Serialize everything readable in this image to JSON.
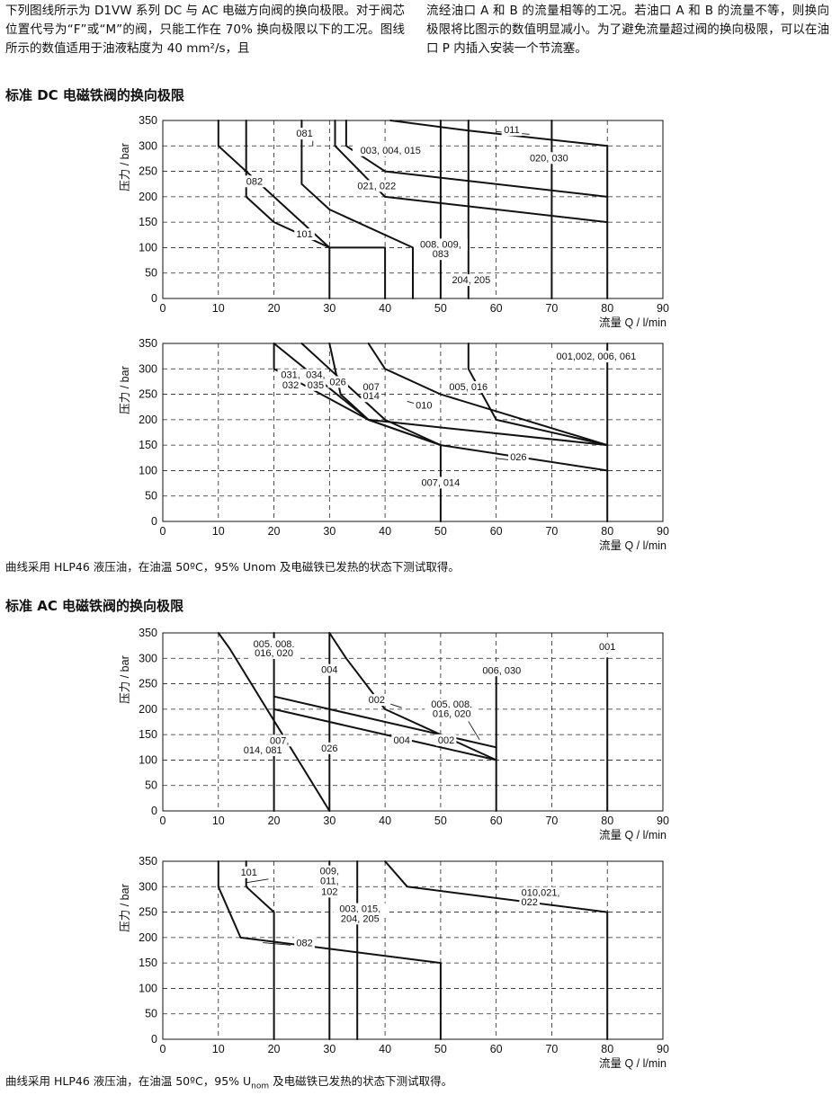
{
  "intro": {
    "left_paragraph": "下列图线所示为 D1VW 系列 DC 与 AC 电磁方向阀的换向极限。对于阀芯位置代号为“F”或“M”的阀，只能工作在 70% 换向极限以下的工况。图线所示的数值适用于油液粘度为 40 mm²/s，且",
    "right_paragraph": "流经油口 A 和 B 的流量相等的工况。若油口 A 和 B 的流量不等，则换向极限将比图示的数值明显减小。为了避免流量超过阀的换向极限，可以在油口 P 内插入安装一个节流塞。"
  },
  "sections": {
    "dc_title": "标准 DC 电磁铁阀的换向极限",
    "dc_note": "曲线采用 HLP46 液压油，在油温 50ºC，95% Unom 及电磁铁已发热的状态下测试取得。",
    "ac_title": "标准 AC 电磁铁阀的换向极限",
    "ac_note_pre": "曲线采用 HLP46 液压油，在油温 50ºC，95% U",
    "ac_note_sub": "nom",
    "ac_note_post": " 及电磁铁已发热的状态下测试取得。"
  },
  "chart_data": [
    {
      "id": "dc1",
      "type": "line",
      "ylabel": "压力 / bar",
      "xlabel": "流量 Q / l/min",
      "xlim": [
        0,
        90
      ],
      "ylim": [
        0,
        350
      ],
      "xticks": [
        0,
        10,
        20,
        30,
        40,
        50,
        60,
        70,
        80,
        90
      ],
      "yticks": [
        0,
        50,
        100,
        150,
        200,
        250,
        300,
        350
      ],
      "series": [
        {
          "name": "011",
          "points": [
            [
              41,
              350
            ],
            [
              55,
              330
            ],
            [
              80,
              300
            ],
            [
              80,
              0
            ]
          ]
        },
        {
          "name": "020, 030",
          "points": [
            [
              70,
              350
            ],
            [
              70,
              0
            ]
          ]
        },
        {
          "name": "204, 205",
          "points": [
            [
              55,
              350
            ],
            [
              55,
              0
            ]
          ]
        },
        {
          "name": "003, 004, 015",
          "points": [
            [
              33,
              350
            ],
            [
              33,
              300
            ],
            [
              40,
              250
            ],
            [
              80,
              200
            ]
          ]
        },
        {
          "name": "021, 022",
          "points": [
            [
              31,
              350
            ],
            [
              31,
              300
            ],
            [
              40,
              200
            ],
            [
              80,
              150
            ]
          ]
        },
        {
          "name": "008, 009, 083",
          "points": [
            [
              25,
              350
            ],
            [
              25,
              225
            ],
            [
              30,
              175
            ],
            [
              45,
              100
            ],
            [
              45,
              0
            ]
          ]
        },
        {
          "name": "082",
          "points": [
            [
              15,
              350
            ],
            [
              15,
              200
            ],
            [
              20,
              150
            ],
            [
              30,
              100
            ],
            [
              40,
              100
            ],
            [
              40,
              0
            ]
          ]
        },
        {
          "name": "101",
          "points": [
            [
              10,
              350
            ],
            [
              10,
              300
            ],
            [
              20,
              200
            ],
            [
              30,
              100
            ],
            [
              30,
              0
            ]
          ]
        },
        {
          "name": "081",
          "points": [
            [
              50,
              350
            ],
            [
              50,
              0
            ]
          ]
        }
      ],
      "labels": [
        "081",
        "011",
        "003, 004, 015",
        "020, 030",
        "082",
        "021, 022",
        "101",
        "008, 009,",
        "083",
        "204, 205"
      ]
    },
    {
      "id": "dc2",
      "type": "line",
      "ylabel": "压力 / bar",
      "xlabel": "流量 Q / l/min",
      "xlim": [
        0,
        90
      ],
      "ylim": [
        0,
        350
      ],
      "xticks": [
        0,
        10,
        20,
        30,
        40,
        50,
        60,
        70,
        80,
        90
      ],
      "yticks": [
        0,
        50,
        100,
        150,
        200,
        250,
        300,
        350
      ],
      "series": [
        {
          "name": "001,002, 006, 061",
          "points": [
            [
              80,
              350
            ],
            [
              80,
              0
            ]
          ]
        },
        {
          "name": "005, 016",
          "points": [
            [
              55,
              350
            ],
            [
              55,
              300
            ],
            [
              60,
              200
            ],
            [
              80,
              150
            ]
          ]
        },
        {
          "name": "010",
          "points": [
            [
              37,
              350
            ],
            [
              40,
              300
            ],
            [
              50,
              250
            ],
            [
              80,
              150
            ]
          ]
        },
        {
          "name": "007, 014",
          "points": [
            [
              30,
              350
            ],
            [
              32,
              250
            ],
            [
              37,
              200
            ],
            [
              50,
              150
            ],
            [
              50,
              0
            ]
          ]
        },
        {
          "name": "026",
          "points": [
            [
              25,
              350
            ],
            [
              30,
              300
            ],
            [
              40,
              200
            ],
            [
              50,
              150
            ],
            [
              80,
              100
            ]
          ]
        },
        {
          "name": "031, 032",
          "points": [
            [
              20,
              350
            ],
            [
              20,
              300
            ],
            [
              37,
              200
            ],
            [
              80,
              150
            ]
          ]
        },
        {
          "name": "034, 035",
          "points": [
            [
              20,
              350
            ],
            [
              37,
              200
            ],
            [
              50,
              150
            ]
          ]
        }
      ],
      "labels": [
        "001,002, 006, 061",
        "031,",
        "032",
        "034,",
        "035",
        "026",
        "007",
        "014",
        "005, 016",
        "010",
        "026",
        "007, 014"
      ]
    },
    {
      "id": "ac1",
      "type": "line",
      "ylabel": "压力 / bar",
      "xlabel": "流量 Q / l/min",
      "xlim": [
        0,
        90
      ],
      "ylim": [
        0,
        350
      ],
      "xticks": [
        0,
        10,
        20,
        30,
        40,
        50,
        60,
        70,
        80,
        90
      ],
      "yticks": [
        0,
        50,
        100,
        150,
        200,
        250,
        300,
        350
      ],
      "series": [
        {
          "name": "001",
          "points": [
            [
              80,
              300
            ],
            [
              80,
              0
            ]
          ]
        },
        {
          "name": "006, 030",
          "points": [
            [
              60,
              270
            ],
            [
              60,
              0
            ]
          ]
        },
        {
          "name": "004",
          "points": [
            [
              30,
              350
            ],
            [
              30,
              0
            ]
          ]
        },
        {
          "name": "005, 008, 016, 020",
          "points": [
            [
              20,
              350
            ],
            [
              20,
              0
            ]
          ]
        },
        {
          "name": "007, 014, 081",
          "points": [
            [
              10,
              350
            ],
            [
              12,
              320
            ],
            [
              30,
              0
            ]
          ]
        },
        {
          "name": "004 curve",
          "points": [
            [
              30,
              350
            ],
            [
              33,
              300
            ],
            [
              40,
              200
            ],
            [
              60,
              100
            ]
          ]
        },
        {
          "name": "002",
          "points": [
            [
              20,
              225
            ],
            [
              60,
              125
            ]
          ]
        },
        {
          "name": "026",
          "points": [
            [
              20,
              200
            ],
            [
              40,
              150
            ],
            [
              60,
              100
            ]
          ]
        }
      ],
      "labels": [
        "005, 008,",
        "016, 020",
        "004",
        "001",
        "006, 030",
        "002",
        "005, 008,",
        "016, 020",
        "007,",
        "014, 081",
        "026",
        "004",
        "002"
      ]
    },
    {
      "id": "ac2",
      "type": "line",
      "ylabel": "压力 / bar",
      "xlabel": "流量 Q / l/min",
      "xlim": [
        0,
        90
      ],
      "ylim": [
        0,
        350
      ],
      "xticks": [
        0,
        10,
        20,
        30,
        40,
        50,
        60,
        70,
        80,
        90
      ],
      "yticks": [
        0,
        50,
        100,
        150,
        200,
        250,
        300,
        350
      ],
      "series": [
        {
          "name": "101",
          "points": [
            [
              15,
              350
            ],
            [
              15,
              300
            ],
            [
              20,
              250
            ],
            [
              20,
              0
            ]
          ]
        },
        {
          "name": "082",
          "points": [
            [
              10,
              350
            ],
            [
              10,
              300
            ],
            [
              14,
              200
            ],
            [
              50,
              150
            ],
            [
              50,
              0
            ]
          ]
        },
        {
          "name": "009, 011, 102",
          "points": [
            [
              30,
              350
            ],
            [
              30,
              0
            ]
          ]
        },
        {
          "name": "003, 015, 204, 205",
          "points": [
            [
              35,
              350
            ],
            [
              35,
              0
            ]
          ]
        },
        {
          "name": "010, 021, 022",
          "points": [
            [
              40,
              350
            ],
            [
              44,
              300
            ],
            [
              80,
              250
            ],
            [
              80,
              0
            ]
          ]
        }
      ],
      "labels": [
        "101",
        "009,",
        "011,",
        "102",
        "003, 015,",
        "204, 205",
        "082",
        "010,021,",
        "022"
      ]
    }
  ]
}
